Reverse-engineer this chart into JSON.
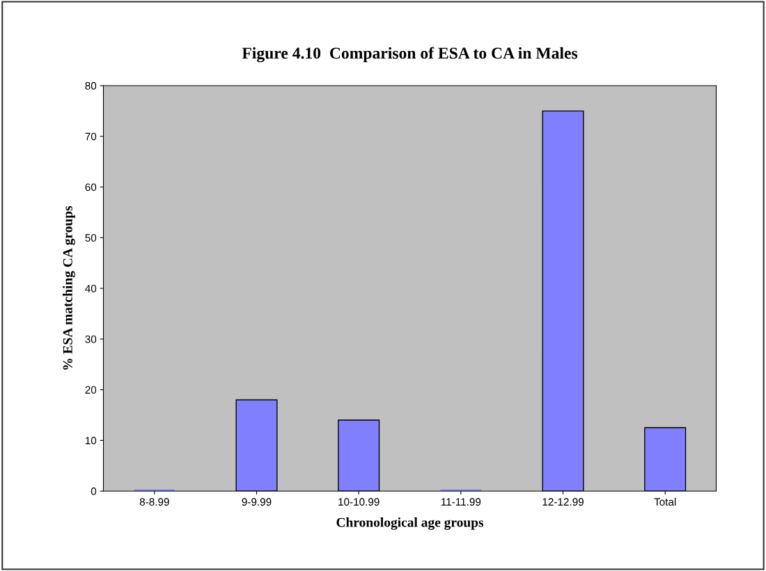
{
  "chart_data": {
    "type": "bar",
    "title": "Figure 4.10  Comparison of ESA to CA in Males",
    "xlabel": "Chronological age groups",
    "ylabel": "% ESA matching CA groups",
    "categories": [
      "8-8.99",
      "9-9.99",
      "10-10.99",
      "11-11.99",
      "12-12.99",
      "Total"
    ],
    "values": [
      0,
      18,
      14,
      0,
      75,
      12.5
    ],
    "color": "#8080ff",
    "ylim": [
      0,
      80
    ],
    "yticks": [
      0,
      10,
      20,
      30,
      40,
      50,
      60,
      70,
      80
    ],
    "grid": false
  }
}
